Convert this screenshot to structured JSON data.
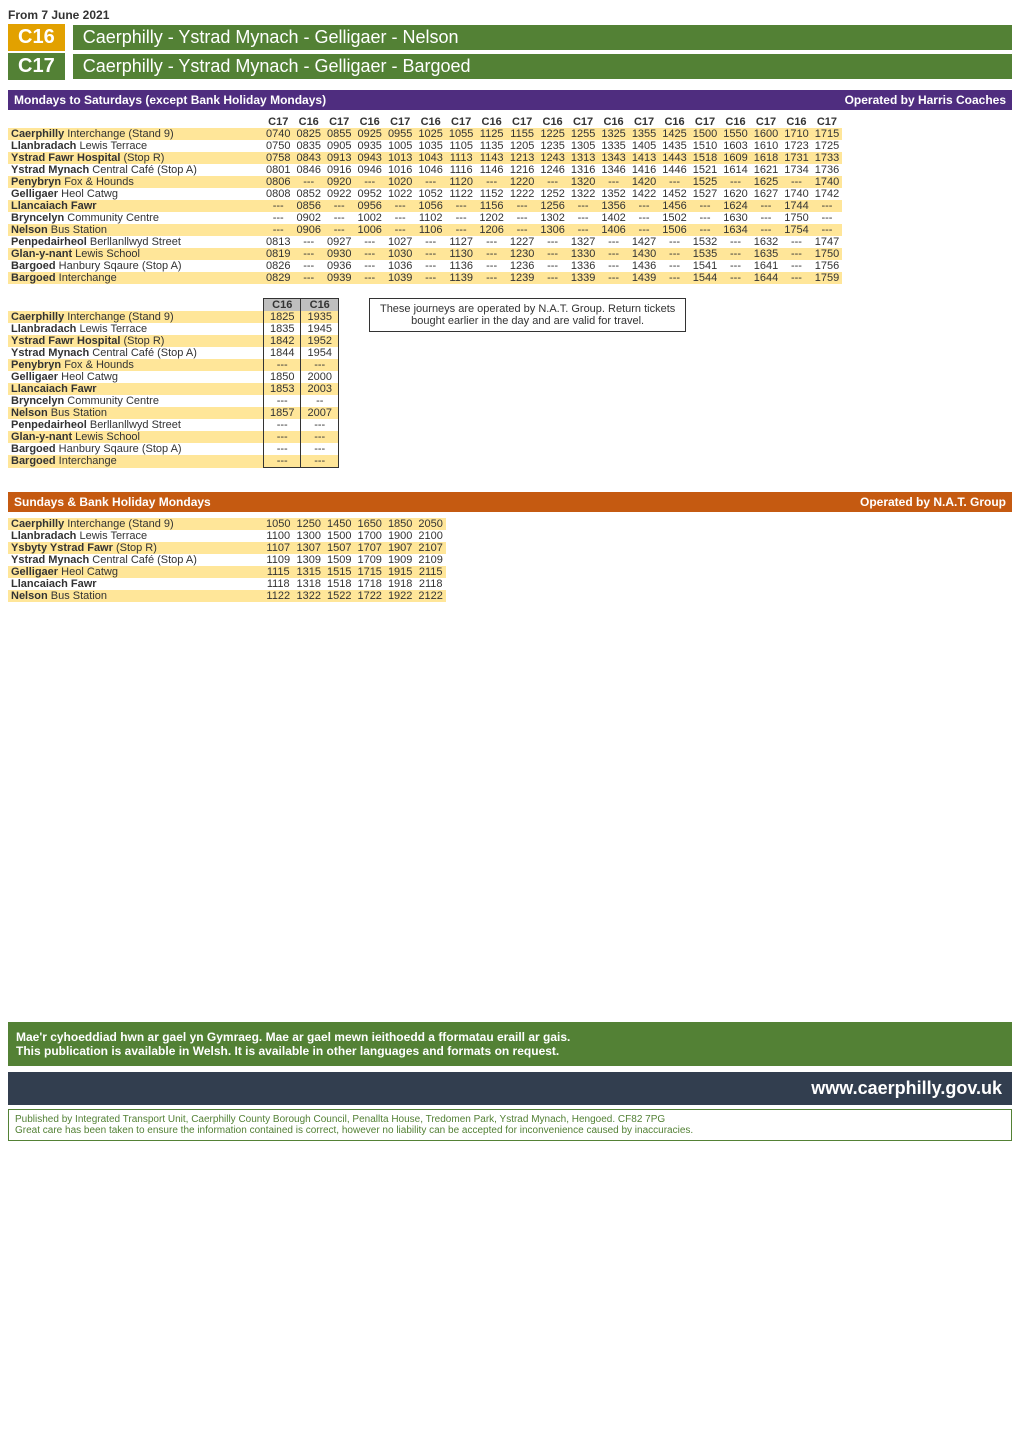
{
  "date_line": "From 7 June 2021",
  "routes": [
    {
      "code": "C16",
      "title": "Caerphilly - Ystrad Mynach - Gelligaer - Nelson",
      "code_bg": "#e2a100",
      "title_bg": "#538135"
    },
    {
      "code": "C17",
      "title": "Caerphilly - Ystrad Mynach - Gelligaer - Bargoed",
      "code_bg": "#538135",
      "title_bg": "#538135"
    }
  ],
  "sections": [
    {
      "left": "Mondays to Saturdays (except Bank Holiday Mondays)",
      "right": "Operated by Harris Coaches",
      "bg": "#4f2d7f"
    },
    {
      "left": "Sundays & Bank Holiday Mondays",
      "right": "Operated by N.A.T. Group",
      "bg": "#c55a11"
    }
  ],
  "main_timetable": {
    "codes": [
      "C17",
      "C16",
      "C17",
      "C16",
      "C17",
      "C16",
      "C17",
      "C16",
      "C17",
      "C16",
      "C17",
      "C16",
      "C17",
      "C16",
      "C17",
      "C16",
      "C17",
      "C16",
      "C17"
    ],
    "row_colors": {
      "odd": "#ffe699",
      "even": "#ffffff"
    },
    "stops": [
      {
        "place": "Caerphilly",
        "suffix": " Interchange (Stand 9)",
        "times": [
          "0740",
          "0825",
          "0855",
          "0925",
          "0955",
          "1025",
          "1055",
          "1125",
          "1155",
          "1225",
          "1255",
          "1325",
          "1355",
          "1425",
          "1500",
          "1550",
          "1600",
          "1710",
          "1715"
        ]
      },
      {
        "place": "Llanbradach",
        "suffix": " Lewis Terrace",
        "times": [
          "0750",
          "0835",
          "0905",
          "0935",
          "1005",
          "1035",
          "1105",
          "1135",
          "1205",
          "1235",
          "1305",
          "1335",
          "1405",
          "1435",
          "1510",
          "1603",
          "1610",
          "1723",
          "1725"
        ]
      },
      {
        "place": "Ystrad Fawr Hospital",
        "suffix": " (Stop R)",
        "times": [
          "0758",
          "0843",
          "0913",
          "0943",
          "1013",
          "1043",
          "1113",
          "1143",
          "1213",
          "1243",
          "1313",
          "1343",
          "1413",
          "1443",
          "1518",
          "1609",
          "1618",
          "1731",
          "1733"
        ]
      },
      {
        "place": "Ystrad Mynach",
        "suffix": " Central Café (Stop A)",
        "times": [
          "0801",
          "0846",
          "0916",
          "0946",
          "1016",
          "1046",
          "1116",
          "1146",
          "1216",
          "1246",
          "1316",
          "1346",
          "1416",
          "1446",
          "1521",
          "1614",
          "1621",
          "1734",
          "1736"
        ]
      },
      {
        "place": "Penybryn",
        "suffix": " Fox & Hounds",
        "times": [
          "0806",
          "---",
          "0920",
          "---",
          "1020",
          "---",
          "1120",
          "---",
          "1220",
          "---",
          "1320",
          "---",
          "1420",
          "---",
          "1525",
          "---",
          "1625",
          "---",
          "1740"
        ]
      },
      {
        "place": "Gelligaer",
        "suffix": " Heol Catwg",
        "times": [
          "0808",
          "0852",
          "0922",
          "0952",
          "1022",
          "1052",
          "1122",
          "1152",
          "1222",
          "1252",
          "1322",
          "1352",
          "1422",
          "1452",
          "1527",
          "1620",
          "1627",
          "1740",
          "1742"
        ]
      },
      {
        "place": "Llancaiach Fawr",
        "suffix": "",
        "times": [
          "---",
          "0856",
          "---",
          "0956",
          "---",
          "1056",
          "---",
          "1156",
          "---",
          "1256",
          "---",
          "1356",
          "---",
          "1456",
          "---",
          "1624",
          "---",
          "1744",
          "---"
        ]
      },
      {
        "place": "Bryncelyn",
        "suffix": " Community Centre",
        "times": [
          "---",
          "0902",
          "---",
          "1002",
          "---",
          "1102",
          "---",
          "1202",
          "---",
          "1302",
          "---",
          "1402",
          "---",
          "1502",
          "---",
          "1630",
          "---",
          "1750",
          "---"
        ]
      },
      {
        "place": "Nelson",
        "suffix": " Bus Station",
        "times": [
          "---",
          "0906",
          "---",
          "1006",
          "---",
          "1106",
          "---",
          "1206",
          "---",
          "1306",
          "---",
          "1406",
          "---",
          "1506",
          "---",
          "1634",
          "---",
          "1754",
          "---"
        ]
      },
      {
        "place": "Penpedairheol",
        "suffix": " Berllanllwyd Street",
        "times": [
          "0813",
          "---",
          "0927",
          "---",
          "1027",
          "---",
          "1127",
          "---",
          "1227",
          "---",
          "1327",
          "---",
          "1427",
          "---",
          "1532",
          "---",
          "1632",
          "---",
          "1747"
        ]
      },
      {
        "place": "Glan-y-nant",
        "suffix": " Lewis School",
        "times": [
          "0819",
          "---",
          "0930",
          "---",
          "1030",
          "---",
          "1130",
          "---",
          "1230",
          "---",
          "1330",
          "---",
          "1430",
          "---",
          "1535",
          "---",
          "1635",
          "---",
          "1750"
        ]
      },
      {
        "place": "Bargoed",
        "suffix": " Hanbury Sqaure (Stop A)",
        "times": [
          "0826",
          "---",
          "0936",
          "---",
          "1036",
          "---",
          "1136",
          "---",
          "1236",
          "---",
          "1336",
          "---",
          "1436",
          "---",
          "1541",
          "---",
          "1641",
          "---",
          "1756"
        ]
      },
      {
        "place": "Bargoed",
        "suffix": " Interchange",
        "times": [
          "0829",
          "---",
          "0939",
          "---",
          "1039",
          "---",
          "1139",
          "---",
          "1239",
          "---",
          "1339",
          "---",
          "1439",
          "---",
          "1544",
          "---",
          "1644",
          "---",
          "1759"
        ]
      }
    ]
  },
  "cont_timetable": {
    "codes": [
      "C16",
      "C16"
    ],
    "header_bg": "#bfbfbf",
    "stops": [
      {
        "place": "Caerphilly",
        "suffix": " Interchange (Stand 9)",
        "times": [
          "1825",
          "1935"
        ]
      },
      {
        "place": "Llanbradach",
        "suffix": " Lewis Terrace",
        "times": [
          "1835",
          "1945"
        ]
      },
      {
        "place": "Ystrad Fawr Hospital",
        "suffix": " (Stop R)",
        "times": [
          "1842",
          "1952"
        ]
      },
      {
        "place": "Ystrad Mynach",
        "suffix": " Central Café (Stop A)",
        "times": [
          "1844",
          "1954"
        ]
      },
      {
        "place": "Penybryn",
        "suffix": " Fox & Hounds",
        "times": [
          "---",
          "---"
        ]
      },
      {
        "place": "Gelligaer",
        "suffix": " Heol Catwg",
        "times": [
          "1850",
          "2000"
        ]
      },
      {
        "place": "Llancaiach Fawr",
        "suffix": "",
        "times": [
          "1853",
          "2003"
        ]
      },
      {
        "place": "Bryncelyn",
        "suffix": " Community Centre",
        "times": [
          "---",
          "--"
        ]
      },
      {
        "place": "Nelson",
        "suffix": " Bus Station",
        "times": [
          "1857",
          "2007"
        ]
      },
      {
        "place": "Penpedairheol",
        "suffix": " Berllanllwyd Street",
        "times": [
          "---",
          "---"
        ]
      },
      {
        "place": "Glan-y-nant",
        "suffix": " Lewis School",
        "times": [
          "---",
          "---"
        ]
      },
      {
        "place": "Bargoed",
        "suffix": " Hanbury Sqaure (Stop A)",
        "times": [
          "---",
          "---"
        ]
      },
      {
        "place": "Bargoed",
        "suffix": " Interchange",
        "times": [
          "---",
          "---"
        ]
      }
    ]
  },
  "note_lines": [
    "These journeys are operated by N.A.T. Group.  Return tickets",
    "bought earlier in the day and are valid for travel."
  ],
  "sunday_timetable": {
    "row_colors": {
      "odd": "#ffe699",
      "even": "#ffffff"
    },
    "stops": [
      {
        "place": "Caerphilly",
        "suffix": " Interchange (Stand 9)",
        "times": [
          "1050",
          "1250",
          "1450",
          "1650",
          "1850",
          "2050"
        ]
      },
      {
        "place": "Llanbradach",
        "suffix": " Lewis Terrace",
        "times": [
          "1100",
          "1300",
          "1500",
          "1700",
          "1900",
          "2100"
        ]
      },
      {
        "place": "Ysbyty Ystrad Fawr",
        "suffix": " (Stop R)",
        "times": [
          "1107",
          "1307",
          "1507",
          "1707",
          "1907",
          "2107"
        ]
      },
      {
        "place": "Ystrad Mynach",
        "suffix": " Central Café (Stop A)",
        "times": [
          "1109",
          "1309",
          "1509",
          "1709",
          "1909",
          "2109"
        ]
      },
      {
        "place": "Gelligaer",
        "suffix": " Heol Catwg",
        "times": [
          "1115",
          "1315",
          "1515",
          "1715",
          "1915",
          "2115"
        ]
      },
      {
        "place": "Llancaiach Fawr",
        "suffix": "",
        "times": [
          "1118",
          "1318",
          "1518",
          "1718",
          "1918",
          "2118"
        ]
      },
      {
        "place": "Nelson",
        "suffix": " Bus Station",
        "times": [
          "1122",
          "1322",
          "1522",
          "1722",
          "1922",
          "2122"
        ]
      }
    ]
  },
  "green_banner": {
    "line1": "Mae'r cyhoeddiad hwn ar gael yn Gymraeg. Mae ar gael mewn ieithoedd a fformatau eraill ar gais.",
    "line2": "This publication is available in Welsh. It is available in other languages and formats on request.",
    "bg": "#538135"
  },
  "url": "www.caerphilly.gov.uk",
  "url_bg": "#323e4f",
  "footer": {
    "line1": "Published by Integrated Transport Unit, Caerphilly County Borough Council, Penallta House, Tredomen Park, Ystrad Mynach, Hengoed. CF82 7PG",
    "line2": "Great care has been taken to ensure the information contained is correct, however no liability can be accepted for inconvenience caused by inaccuracies."
  }
}
